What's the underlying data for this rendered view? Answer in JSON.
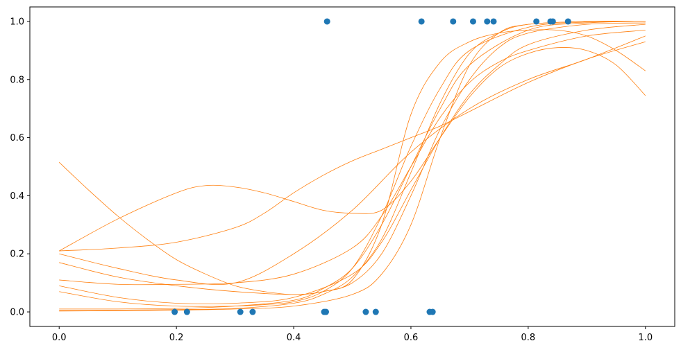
{
  "chart_data": {
    "type": "scatter",
    "title": "",
    "xlabel": "",
    "ylabel": "",
    "xlim": [
      -0.05,
      1.05
    ],
    "ylim": [
      -0.05,
      1.05
    ],
    "grid": false,
    "xticks": [
      0.0,
      0.2,
      0.4,
      0.6,
      0.8,
      1.0
    ],
    "xtick_labels": [
      "0.0",
      "0.2",
      "0.4",
      "0.6",
      "0.8",
      "1.0"
    ],
    "yticks": [
      0.0,
      0.2,
      0.4,
      0.6,
      0.8,
      1.0
    ],
    "ytick_labels": [
      "0.0",
      "0.2",
      "0.4",
      "0.6",
      "0.8",
      "1.0"
    ],
    "colors": {
      "points": "#1f77b4",
      "curves": "#ff7f0e"
    },
    "points": {
      "x": [
        0.197,
        0.218,
        0.309,
        0.33,
        0.452,
        0.455,
        0.457,
        0.523,
        0.54,
        0.618,
        0.632,
        0.637,
        0.672,
        0.706,
        0.73,
        0.741,
        0.814,
        0.838,
        0.842,
        0.868
      ],
      "y": [
        0,
        0,
        0,
        0,
        0,
        0,
        1,
        0,
        0,
        1,
        0,
        0,
        1,
        1,
        1,
        1,
        1,
        1,
        1,
        1
      ]
    },
    "curves": [
      {
        "x": [
          0,
          0.1,
          0.2,
          0.3,
          0.4,
          0.45,
          0.5,
          0.55,
          0.6,
          0.65,
          0.7,
          0.75,
          0.8,
          0.9,
          1.0
        ],
        "y": [
          0.005,
          0.006,
          0.008,
          0.012,
          0.03,
          0.06,
          0.12,
          0.25,
          0.48,
          0.72,
          0.89,
          0.96,
          0.99,
          1.0,
          1.0
        ]
      },
      {
        "x": [
          0,
          0.1,
          0.2,
          0.3,
          0.4,
          0.5,
          0.55,
          0.6,
          0.65,
          0.7,
          0.75,
          0.8,
          0.9,
          1.0
        ],
        "y": [
          0.003,
          0.004,
          0.006,
          0.01,
          0.02,
          0.06,
          0.13,
          0.3,
          0.6,
          0.85,
          0.96,
          0.99,
          1.0,
          1.0
        ]
      },
      {
        "x": [
          0,
          0.1,
          0.2,
          0.3,
          0.4,
          0.45,
          0.5,
          0.55,
          0.6,
          0.65,
          0.7,
          0.8,
          0.9,
          1.0
        ],
        "y": [
          0.01,
          0.01,
          0.012,
          0.02,
          0.04,
          0.08,
          0.15,
          0.3,
          0.5,
          0.7,
          0.85,
          0.97,
          0.995,
          1.0
        ]
      },
      {
        "x": [
          0,
          0.1,
          0.2,
          0.3,
          0.35,
          0.4,
          0.45,
          0.5,
          0.55,
          0.6,
          0.65,
          0.7,
          0.8,
          0.9,
          1.0
        ],
        "y": [
          0.07,
          0.035,
          0.02,
          0.02,
          0.025,
          0.035,
          0.07,
          0.15,
          0.33,
          0.57,
          0.77,
          0.9,
          0.98,
          0.998,
          1.0
        ]
      },
      {
        "x": [
          0,
          0.1,
          0.2,
          0.3,
          0.4,
          0.5,
          0.55,
          0.6,
          0.65,
          0.7,
          0.75,
          0.8,
          0.9,
          1.0
        ],
        "y": [
          0.09,
          0.05,
          0.03,
          0.03,
          0.05,
          0.13,
          0.24,
          0.42,
          0.6,
          0.75,
          0.85,
          0.92,
          0.97,
          0.99
        ]
      },
      {
        "x": [
          0,
          0.1,
          0.2,
          0.3,
          0.4,
          0.45,
          0.5,
          0.55,
          0.6,
          0.65,
          0.7,
          0.75,
          0.8,
          0.9,
          1.0
        ],
        "y": [
          0.17,
          0.12,
          0.09,
          0.07,
          0.06,
          0.07,
          0.1,
          0.2,
          0.4,
          0.63,
          0.8,
          0.91,
          0.96,
          0.99,
          0.995
        ]
      },
      {
        "x": [
          0,
          0.1,
          0.2,
          0.3,
          0.4,
          0.5,
          0.55,
          0.6,
          0.65,
          0.7,
          0.75,
          0.8,
          0.9,
          1.0
        ],
        "y": [
          0.11,
          0.095,
          0.095,
          0.1,
          0.13,
          0.22,
          0.33,
          0.5,
          0.67,
          0.79,
          0.86,
          0.9,
          0.95,
          0.97
        ]
      },
      {
        "x": [
          0,
          0.1,
          0.2,
          0.3,
          0.4,
          0.5,
          0.6,
          0.7,
          0.8,
          0.9,
          1.0
        ],
        "y": [
          0.2,
          0.15,
          0.11,
          0.1,
          0.2,
          0.35,
          0.55,
          0.7,
          0.8,
          0.87,
          0.95
        ]
      },
      {
        "x": [
          0,
          0.1,
          0.2,
          0.25,
          0.3,
          0.35,
          0.4,
          0.45,
          0.5,
          0.55,
          0.6,
          0.65,
          0.7,
          0.75,
          0.8,
          0.85,
          0.9,
          0.95,
          1.0
        ],
        "y": [
          0.21,
          0.32,
          0.41,
          0.435,
          0.43,
          0.41,
          0.38,
          0.35,
          0.34,
          0.35,
          0.45,
          0.6,
          0.74,
          0.84,
          0.89,
          0.91,
          0.9,
          0.85,
          0.745
        ]
      },
      {
        "x": [
          0,
          0.05,
          0.1,
          0.15,
          0.2,
          0.25,
          0.3,
          0.35,
          0.4,
          0.45,
          0.5,
          0.55,
          0.6,
          0.65,
          0.7,
          0.75,
          0.8,
          0.85,
          0.9,
          0.95,
          1.0
        ],
        "y": [
          0.515,
          0.42,
          0.33,
          0.25,
          0.18,
          0.13,
          0.09,
          0.07,
          0.06,
          0.07,
          0.11,
          0.3,
          0.68,
          0.86,
          0.93,
          0.96,
          0.97,
          0.97,
          0.95,
          0.9,
          0.83
        ]
      },
      {
        "x": [
          0,
          0.1,
          0.2,
          0.3,
          0.35,
          0.4,
          0.45,
          0.5,
          0.55,
          0.6,
          0.65,
          0.7,
          0.8,
          0.9,
          1.0
        ],
        "y": [
          0.21,
          0.22,
          0.24,
          0.29,
          0.34,
          0.41,
          0.47,
          0.52,
          0.56,
          0.6,
          0.64,
          0.69,
          0.79,
          0.87,
          0.93
        ]
      }
    ]
  }
}
